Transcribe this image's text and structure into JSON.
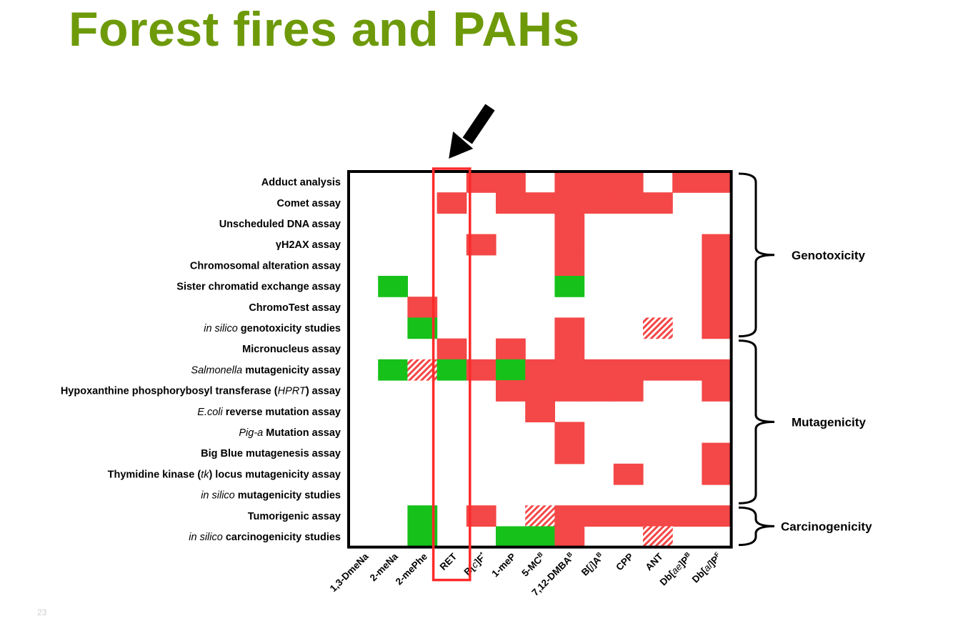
{
  "slide": {
    "title": "Forest fires and PAHs",
    "title_color": "#6e9a0a",
    "page_number": "23"
  },
  "colors": {
    "positive": "#f44747",
    "negative": "#16c11a",
    "equivocal": "#f44747",
    "frame": "#000000",
    "highlight": "#ff2a2a",
    "arrow": "#000000"
  },
  "chart_data": {
    "type": "heatmap",
    "rows": [
      {
        "parts": [
          {
            "t": "Adduct analysis",
            "i": false
          }
        ]
      },
      {
        "parts": [
          {
            "t": "Comet assay",
            "i": false
          }
        ]
      },
      {
        "parts": [
          {
            "t": "Unscheduled DNA assay",
            "i": false
          }
        ]
      },
      {
        "parts": [
          {
            "t": "γH2AX assay",
            "i": false
          }
        ]
      },
      {
        "parts": [
          {
            "t": "Chromosomal alteration assay",
            "i": false
          }
        ]
      },
      {
        "parts": [
          {
            "t": "Sister chromatid exchange assay",
            "i": false
          }
        ]
      },
      {
        "parts": [
          {
            "t": "ChromoTest assay",
            "i": false
          }
        ]
      },
      {
        "parts": [
          {
            "t": "in silico",
            "i": true
          },
          {
            "t": " genotoxicity studies",
            "i": false
          }
        ]
      },
      {
        "parts": [
          {
            "t": "Micronucleus assay",
            "i": false
          }
        ]
      },
      {
        "parts": [
          {
            "t": "Salmonella",
            "i": true
          },
          {
            "t": " mutagenicity assay",
            "i": false
          }
        ]
      },
      {
        "parts": [
          {
            "t": "Hypoxanthine phosphorybosyl transferase (",
            "i": false
          },
          {
            "t": "HPRT",
            "i": true
          },
          {
            "t": ") assay",
            "i": false
          }
        ]
      },
      {
        "parts": [
          {
            "t": "E.coli",
            "i": true
          },
          {
            "t": " reverse mutation assay",
            "i": false
          }
        ]
      },
      {
        "parts": [
          {
            "t": "Pig-a",
            "i": true
          },
          {
            "t": " Mutation assay",
            "i": false
          }
        ]
      },
      {
        "parts": [
          {
            "t": "Big Blue mutagenesis assay",
            "i": false
          }
        ]
      },
      {
        "parts": [
          {
            "t": "Thymidine kinase (",
            "i": false
          },
          {
            "t": "tk",
            "i": true
          },
          {
            "t": ") locus mutagenicity assay",
            "i": false
          }
        ]
      },
      {
        "parts": [
          {
            "t": "in silico",
            "i": true
          },
          {
            "t": " mutagenicity studies",
            "i": false
          }
        ]
      },
      {
        "parts": [
          {
            "t": "Tumorigenic assay",
            "i": false
          }
        ]
      },
      {
        "parts": [
          {
            "t": "in silico",
            "i": true
          },
          {
            "t": " carcinogenicity studies",
            "i": false
          }
        ]
      }
    ],
    "columns": [
      {
        "parts": [
          {
            "t": "1,3-DmeNa"
          }
        ]
      },
      {
        "parts": [
          {
            "t": "2-meNa"
          }
        ]
      },
      {
        "parts": [
          {
            "t": "2-mePhe"
          }
        ]
      },
      {
        "parts": [
          {
            "t": "RET"
          }
        ]
      },
      {
        "parts": [
          {
            "t": "B["
          },
          {
            "t": "c",
            "i": true
          },
          {
            "t": "]F"
          },
          {
            "t": "*",
            "sup": true
          }
        ]
      },
      {
        "parts": [
          {
            "t": "1-meP"
          }
        ]
      },
      {
        "parts": [
          {
            "t": "5-MC"
          },
          {
            "t": "B",
            "sup": true
          }
        ]
      },
      {
        "parts": [
          {
            "t": "7,12-DMBA"
          },
          {
            "t": "B",
            "sup": true
          }
        ]
      },
      {
        "parts": [
          {
            "t": "B["
          },
          {
            "t": "j",
            "i": true
          },
          {
            "t": "]A"
          },
          {
            "t": "B",
            "sup": true
          }
        ]
      },
      {
        "parts": [
          {
            "t": "CPP"
          }
        ]
      },
      {
        "parts": [
          {
            "t": "ANT"
          }
        ]
      },
      {
        "parts": [
          {
            "t": "Db["
          },
          {
            "t": "ae",
            "i": true
          },
          {
            "t": "]P"
          },
          {
            "t": "B",
            "sup": true
          }
        ]
      },
      {
        "parts": [
          {
            "t": "Db["
          },
          {
            "t": "al",
            "i": true
          },
          {
            "t": "]P"
          },
          {
            "t": "F",
            "sup": true
          }
        ]
      }
    ],
    "legend_codes": {
      "P": "positive",
      "N": "negative",
      "E": "equivocal",
      "-": "no data"
    },
    "cells": [
      [
        "-",
        "-",
        "-",
        "-",
        "P",
        "P",
        "-",
        "P",
        "P",
        "P",
        "-",
        "P",
        "P"
      ],
      [
        "-",
        "-",
        "-",
        "P",
        "-",
        "P",
        "P",
        "P",
        "P",
        "P",
        "P",
        "-",
        "-"
      ],
      [
        "-",
        "-",
        "-",
        "-",
        "-",
        "-",
        "-",
        "P",
        "-",
        "-",
        "-",
        "-",
        "-"
      ],
      [
        "-",
        "-",
        "-",
        "-",
        "P",
        "-",
        "-",
        "P",
        "-",
        "-",
        "-",
        "-",
        "P"
      ],
      [
        "-",
        "-",
        "-",
        "-",
        "-",
        "-",
        "-",
        "P",
        "-",
        "-",
        "-",
        "-",
        "P"
      ],
      [
        "-",
        "N",
        "-",
        "-",
        "-",
        "-",
        "-",
        "N",
        "-",
        "-",
        "-",
        "-",
        "P"
      ],
      [
        "-",
        "-",
        "P",
        "-",
        "-",
        "-",
        "-",
        "-",
        "-",
        "-",
        "-",
        "-",
        "P"
      ],
      [
        "-",
        "-",
        "N",
        "-",
        "-",
        "-",
        "-",
        "P",
        "-",
        "-",
        "E",
        "-",
        "P"
      ],
      [
        "-",
        "-",
        "-",
        "P",
        "-",
        "P",
        "-",
        "P",
        "-",
        "-",
        "-",
        "-",
        "-"
      ],
      [
        "-",
        "N",
        "E",
        "N",
        "P",
        "N",
        "P",
        "P",
        "P",
        "P",
        "P",
        "P",
        "P"
      ],
      [
        "-",
        "-",
        "-",
        "-",
        "-",
        "P",
        "P",
        "P",
        "P",
        "P",
        "-",
        "-",
        "P"
      ],
      [
        "-",
        "-",
        "-",
        "-",
        "-",
        "-",
        "P",
        "-",
        "-",
        "-",
        "-",
        "-",
        "-"
      ],
      [
        "-",
        "-",
        "-",
        "-",
        "-",
        "-",
        "-",
        "P",
        "-",
        "-",
        "-",
        "-",
        "-"
      ],
      [
        "-",
        "-",
        "-",
        "-",
        "-",
        "-",
        "-",
        "P",
        "-",
        "-",
        "-",
        "-",
        "P"
      ],
      [
        "-",
        "-",
        "-",
        "-",
        "-",
        "-",
        "-",
        "-",
        "-",
        "P",
        "-",
        "-",
        "P"
      ],
      [
        "-",
        "-",
        "-",
        "-",
        "-",
        "-",
        "-",
        "-",
        "-",
        "-",
        "-",
        "-",
        "-"
      ],
      [
        "-",
        "-",
        "N",
        "-",
        "P",
        "-",
        "E",
        "P",
        "P",
        "P",
        "P",
        "P",
        "P"
      ],
      [
        "-",
        "-",
        "N",
        "-",
        "-",
        "N",
        "N",
        "P",
        "-",
        "-",
        "E",
        "-",
        "-"
      ]
    ],
    "groups": [
      {
        "label": "Genotoxicity",
        "first_row": 0,
        "last_row": 7
      },
      {
        "label": "Mutagenicity",
        "first_row": 8,
        "last_row": 15
      },
      {
        "label": "Carcinogenicity",
        "first_row": 16,
        "last_row": 17
      }
    ],
    "highlighted_column": 3
  }
}
